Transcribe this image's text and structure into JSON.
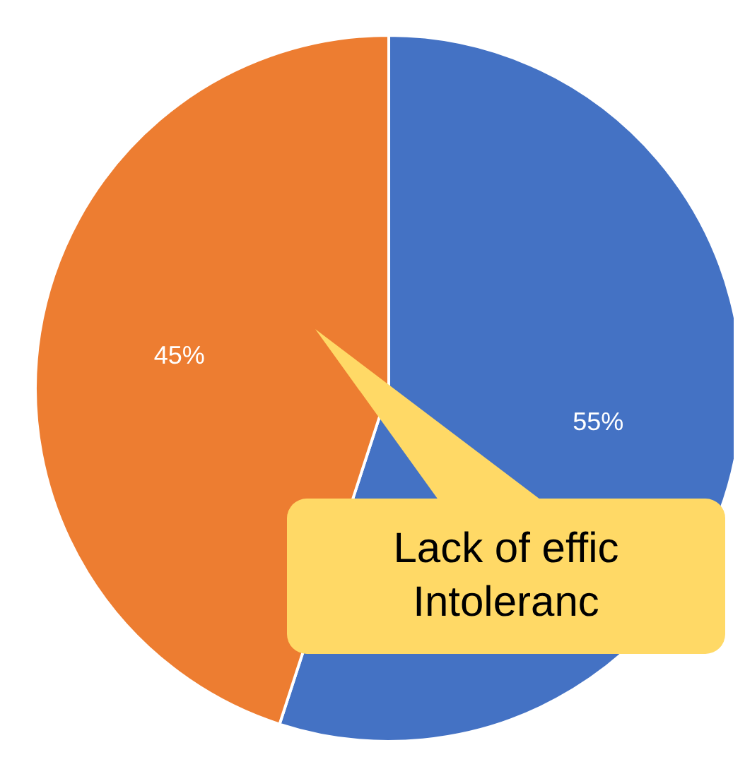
{
  "chart_data": {
    "type": "pie",
    "categories": [
      null,
      null
    ],
    "values": [
      55,
      45
    ],
    "colors": [
      "#4472c4",
      "#ed7d31"
    ],
    "value_labels": [
      "55%",
      "45%"
    ],
    "annotations": [
      "Lack of effic",
      "Intoleranc"
    ]
  }
}
